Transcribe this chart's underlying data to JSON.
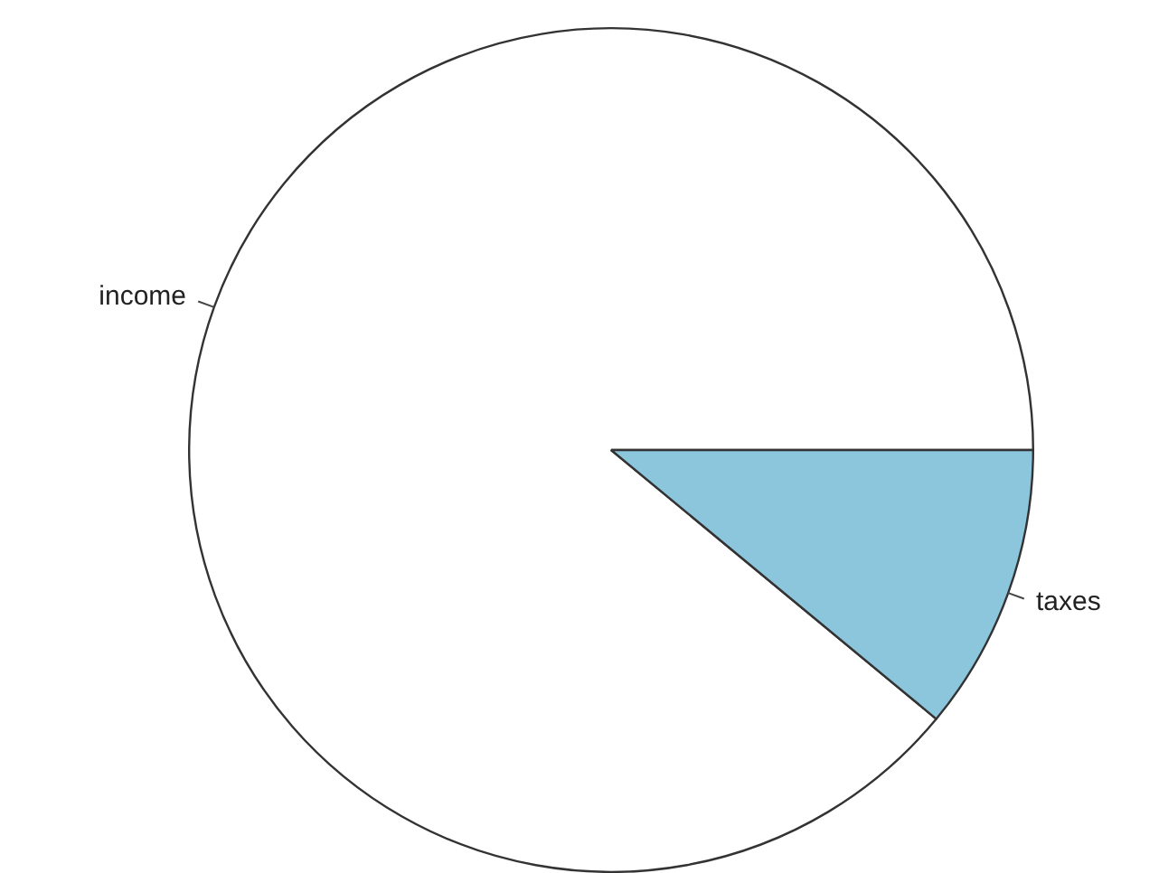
{
  "chart_data": {
    "type": "pie",
    "categories": [
      "income",
      "taxes"
    ],
    "values": [
      89,
      11
    ],
    "colors": [
      "#ffffff",
      "#8cc6dc"
    ],
    "legend": false
  }
}
